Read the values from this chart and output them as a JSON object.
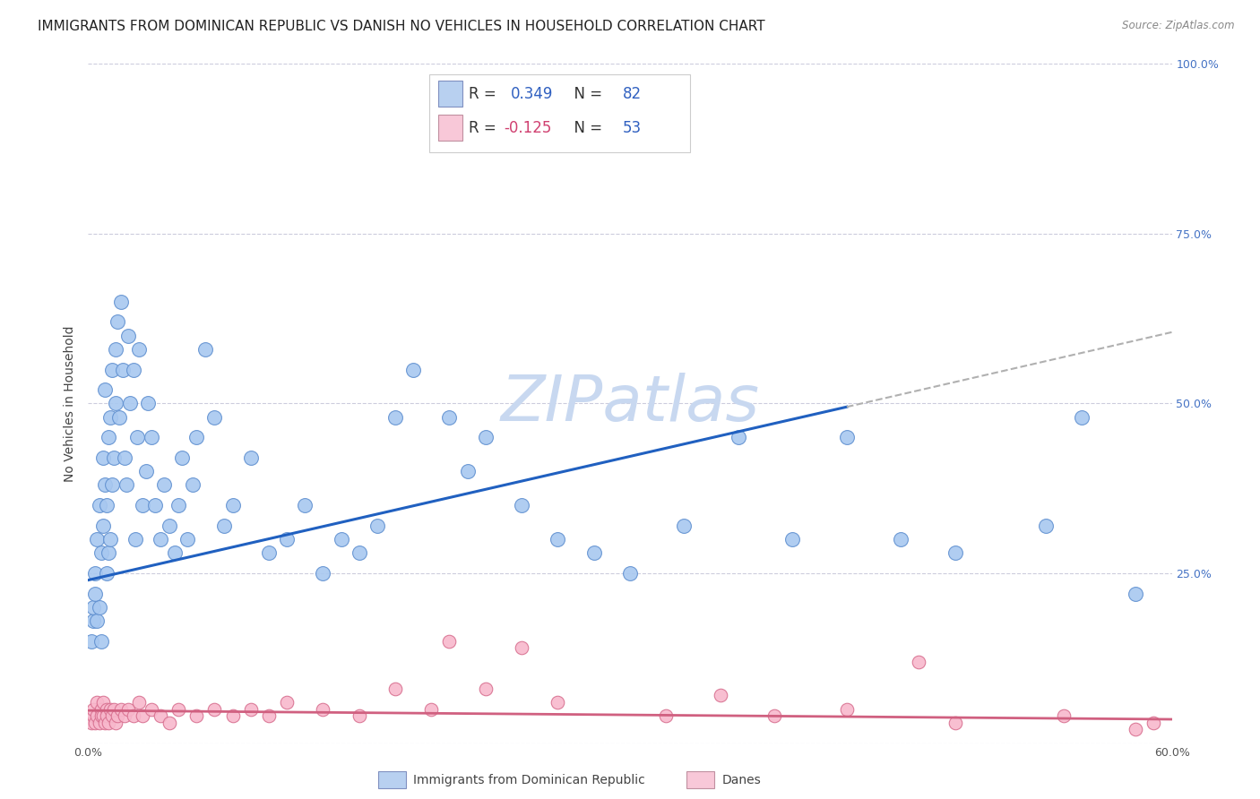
{
  "title": "IMMIGRANTS FROM DOMINICAN REPUBLIC VS DANISH NO VEHICLES IN HOUSEHOLD CORRELATION CHART",
  "source": "Source: ZipAtlas.com",
  "ylabel": "No Vehicles in Household",
  "xlim": [
    0.0,
    0.6
  ],
  "ylim": [
    0.0,
    1.0
  ],
  "blue_R": 0.349,
  "blue_N": 82,
  "pink_R": -0.125,
  "pink_N": 53,
  "blue_color": "#a8c8f0",
  "pink_color": "#f8b8cc",
  "blue_edge_color": "#6090d0",
  "pink_edge_color": "#d87090",
  "blue_line_color": "#2060c0",
  "pink_line_color": "#d06080",
  "dashed_line_color": "#b0b0b0",
  "watermark_color": "#c8d8f0",
  "legend_fill_blue": "#b8d0f0",
  "legend_fill_pink": "#f8c8d8",
  "legend_edge_blue": "#8090c0",
  "legend_edge_pink": "#c090a0",
  "blue_scatter_x": [
    0.002,
    0.003,
    0.003,
    0.004,
    0.004,
    0.005,
    0.005,
    0.006,
    0.006,
    0.007,
    0.007,
    0.008,
    0.008,
    0.009,
    0.009,
    0.01,
    0.01,
    0.011,
    0.011,
    0.012,
    0.012,
    0.013,
    0.013,
    0.014,
    0.015,
    0.015,
    0.016,
    0.017,
    0.018,
    0.019,
    0.02,
    0.021,
    0.022,
    0.023,
    0.025,
    0.026,
    0.027,
    0.028,
    0.03,
    0.032,
    0.033,
    0.035,
    0.037,
    0.04,
    0.042,
    0.045,
    0.048,
    0.05,
    0.052,
    0.055,
    0.058,
    0.06,
    0.065,
    0.07,
    0.075,
    0.08,
    0.09,
    0.1,
    0.11,
    0.12,
    0.13,
    0.14,
    0.15,
    0.16,
    0.17,
    0.18,
    0.2,
    0.21,
    0.22,
    0.24,
    0.26,
    0.28,
    0.3,
    0.33,
    0.36,
    0.39,
    0.42,
    0.45,
    0.48,
    0.53,
    0.55,
    0.58
  ],
  "blue_scatter_y": [
    0.15,
    0.18,
    0.2,
    0.22,
    0.25,
    0.18,
    0.3,
    0.2,
    0.35,
    0.15,
    0.28,
    0.32,
    0.42,
    0.38,
    0.52,
    0.25,
    0.35,
    0.28,
    0.45,
    0.3,
    0.48,
    0.38,
    0.55,
    0.42,
    0.5,
    0.58,
    0.62,
    0.48,
    0.65,
    0.55,
    0.42,
    0.38,
    0.6,
    0.5,
    0.55,
    0.3,
    0.45,
    0.58,
    0.35,
    0.4,
    0.5,
    0.45,
    0.35,
    0.3,
    0.38,
    0.32,
    0.28,
    0.35,
    0.42,
    0.3,
    0.38,
    0.45,
    0.58,
    0.48,
    0.32,
    0.35,
    0.42,
    0.28,
    0.3,
    0.35,
    0.25,
    0.3,
    0.28,
    0.32,
    0.48,
    0.55,
    0.48,
    0.4,
    0.45,
    0.35,
    0.3,
    0.28,
    0.25,
    0.32,
    0.45,
    0.3,
    0.45,
    0.3,
    0.28,
    0.32,
    0.48,
    0.22
  ],
  "pink_scatter_x": [
    0.002,
    0.003,
    0.003,
    0.004,
    0.005,
    0.005,
    0.006,
    0.007,
    0.007,
    0.008,
    0.008,
    0.009,
    0.01,
    0.01,
    0.011,
    0.012,
    0.013,
    0.014,
    0.015,
    0.016,
    0.018,
    0.02,
    0.022,
    0.025,
    0.028,
    0.03,
    0.035,
    0.04,
    0.045,
    0.05,
    0.06,
    0.07,
    0.08,
    0.09,
    0.1,
    0.11,
    0.13,
    0.15,
    0.17,
    0.19,
    0.22,
    0.26,
    0.32,
    0.38,
    0.42,
    0.48,
    0.54,
    0.58,
    0.59,
    0.2,
    0.24,
    0.35,
    0.46
  ],
  "pink_scatter_y": [
    0.03,
    0.04,
    0.05,
    0.03,
    0.04,
    0.06,
    0.03,
    0.05,
    0.04,
    0.06,
    0.04,
    0.03,
    0.05,
    0.04,
    0.03,
    0.05,
    0.04,
    0.05,
    0.03,
    0.04,
    0.05,
    0.04,
    0.05,
    0.04,
    0.06,
    0.04,
    0.05,
    0.04,
    0.03,
    0.05,
    0.04,
    0.05,
    0.04,
    0.05,
    0.04,
    0.06,
    0.05,
    0.04,
    0.08,
    0.05,
    0.08,
    0.06,
    0.04,
    0.04,
    0.05,
    0.03,
    0.04,
    0.02,
    0.03,
    0.15,
    0.14,
    0.07,
    0.12
  ],
  "blue_trend_x0": 0.0,
  "blue_trend_x1": 0.42,
  "blue_trend_y0": 0.24,
  "blue_trend_y1": 0.495,
  "dash_trend_x0": 0.42,
  "dash_trend_x1": 0.6,
  "dash_trend_y0": 0.495,
  "dash_trend_y1": 0.605,
  "pink_trend_x0": 0.0,
  "pink_trend_x1": 0.6,
  "pink_trend_y0": 0.048,
  "pink_trend_y1": 0.035,
  "title_fontsize": 11,
  "axis_label_fontsize": 10,
  "tick_fontsize": 9,
  "legend_fontsize": 12,
  "watermark_fontsize": 52
}
